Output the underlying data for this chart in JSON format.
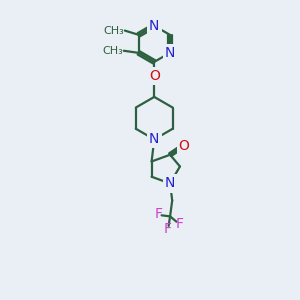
{
  "background_color": "#eaeff5",
  "bond_color": "#2d6040",
  "nitrogen_color": "#2222cc",
  "oxygen_color": "#cc1111",
  "fluorine_color": "#cc44cc",
  "line_width": 1.6,
  "font_size": 10,
  "fig_size": [
    3.0,
    3.0
  ],
  "dpi": 100,
  "xlim": [
    0,
    10
  ],
  "ylim": [
    0,
    14
  ]
}
